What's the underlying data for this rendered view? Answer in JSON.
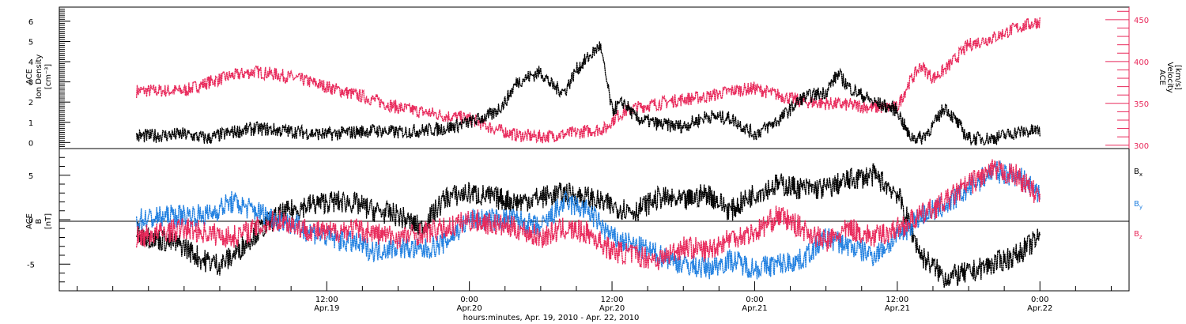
{
  "colors": {
    "black": "#000000",
    "red": "#e8285a",
    "blue": "#1f7fe0",
    "magenta_axis": "#e8285a"
  },
  "x_axis": {
    "title": "hours:minutes, Apr. 19, 2010 - Apr. 22, 2010",
    "ticks": [
      {
        "t": 12,
        "time": "12:00",
        "date": "Apr.19"
      },
      {
        "t": 24,
        "time": "0:00",
        "date": "Apr.20"
      },
      {
        "t": 36,
        "time": "12:00",
        "date": "Apr.20"
      },
      {
        "t": 48,
        "time": "0:00",
        "date": "Apr.21"
      },
      {
        "t": 60,
        "time": "12:00",
        "date": "Apr.21"
      },
      {
        "t": 72,
        "time": "0:00",
        "date": "Apr.22"
      }
    ],
    "t_range": [
      -10.5,
      79.5
    ]
  },
  "top_panel": {
    "left_label_lines": [
      "ACE",
      "Ion Density",
      "[cm⁻³]"
    ],
    "right_label_lines": [
      "ACE",
      "Velocity",
      "[km/s]"
    ]
  },
  "bottom_panel": {
    "left_label_lines": [
      "ACE",
      "B",
      "[nT]"
    ],
    "legend": [
      {
        "key": "bx",
        "base": "B",
        "sub": "x",
        "color": "#000000"
      },
      {
        "key": "by",
        "base": "B",
        "sub": "y",
        "color": "#1f7fe0"
      },
      {
        "key": "bz",
        "base": "B",
        "sub": "z",
        "color": "#e8285a"
      }
    ]
  },
  "chart_data": [
    {
      "type": "scatter",
      "title": "",
      "xlabel": "",
      "ylabel": "ACE Ion Density [cm⁻³]",
      "ylim": [
        -0.3,
        6.7
      ],
      "y_ticks": [
        0,
        1,
        2,
        3,
        4,
        5,
        6
      ],
      "series": [
        {
          "name": "",
          "axis": "left",
          "color": "#000000",
          "x": [
            -4,
            0,
            2,
            4,
            6,
            8,
            10,
            12,
            14,
            16,
            18,
            20,
            22,
            24,
            26,
            27,
            28,
            30,
            31,
            32,
            33,
            34,
            35,
            36,
            37,
            38,
            40,
            42,
            44,
            46,
            48,
            50,
            52,
            54,
            55,
            56,
            58,
            60,
            61,
            62,
            63,
            64,
            66,
            68,
            70,
            72
          ],
          "y": [
            0.3,
            0.4,
            0.2,
            0.5,
            0.7,
            0.6,
            0.5,
            0.4,
            0.5,
            0.6,
            0.5,
            0.6,
            0.7,
            1.0,
            1.4,
            2.0,
            3.0,
            3.5,
            2.8,
            2.5,
            3.6,
            4.2,
            4.8,
            1.6,
            2.0,
            1.2,
            0.9,
            0.8,
            1.3,
            1.2,
            0.4,
            1.1,
            2.2,
            2.5,
            3.4,
            2.7,
            2.0,
            1.6,
            0.3,
            0.2,
            0.8,
            1.8,
            0.2,
            0.2,
            0.5,
            0.6
          ]
        }
      ]
    },
    {
      "type": "scatter",
      "title": "",
      "xlabel": "",
      "ylabel": "ACE Velocity [km/s]",
      "ylim": [
        296,
        465
      ],
      "y_ticks": [
        300,
        350,
        400,
        450
      ],
      "series": [
        {
          "name": "",
          "axis": "right",
          "color": "#e8285a",
          "x": [
            -4,
            0,
            2,
            4,
            6,
            8,
            10,
            12,
            14,
            16,
            18,
            20,
            22,
            24,
            26,
            28,
            30,
            32,
            34,
            35.5,
            36,
            37,
            38,
            40,
            42,
            44,
            46,
            48,
            50,
            52,
            54,
            56,
            58,
            60,
            61,
            62,
            63,
            64,
            66,
            68,
            70,
            72
          ],
          "y": [
            365,
            365,
            375,
            383,
            388,
            384,
            378,
            370,
            362,
            354,
            345,
            340,
            335,
            332,
            320,
            312,
            310,
            313,
            317,
            320,
            330,
            340,
            345,
            350,
            355,
            358,
            365,
            368,
            360,
            352,
            350,
            348,
            345,
            345,
            375,
            395,
            380,
            390,
            420,
            428,
            440,
            448
          ]
        }
      ]
    },
    {
      "type": "scatter",
      "title": "",
      "xlabel": "hours:minutes, Apr. 19, 2010 - Apr. 22, 2010",
      "ylabel": "ACE B [nT]",
      "ylim": [
        -8,
        8
      ],
      "y_ticks": [
        -5,
        0,
        5
      ],
      "series": [
        {
          "name": "Bx",
          "color": "#000000",
          "x": [
            -4,
            0,
            1.5,
            3,
            4,
            6,
            8,
            10,
            12,
            14,
            16,
            18,
            20,
            22,
            24,
            26,
            28,
            30,
            32,
            34,
            36,
            38,
            40,
            42,
            44,
            46,
            48,
            50,
            52,
            54,
            56,
            58,
            60,
            62,
            64,
            66,
            68,
            70,
            72
          ],
          "y": [
            -1.5,
            -3.0,
            -4.5,
            -5.0,
            -4.2,
            -1.5,
            0.5,
            1.5,
            2.0,
            2.0,
            1.0,
            0.5,
            -1.0,
            2.5,
            3.0,
            2.5,
            2.0,
            2.5,
            3.0,
            2.5,
            1.5,
            1.0,
            2.5,
            2.0,
            3.0,
            1.0,
            3.0,
            4.0,
            3.5,
            3.5,
            4.5,
            5.0,
            3.0,
            -4.0,
            -6.5,
            -6.0,
            -5.0,
            -4.0,
            -2.0
          ]
        },
        {
          "name": "By",
          "color": "#1f7fe0",
          "x": [
            -4,
            0,
            2,
            4,
            6,
            8,
            10,
            12,
            14,
            16,
            18,
            20,
            22,
            24,
            26,
            28,
            30,
            32,
            34,
            36,
            38,
            40,
            42,
            44,
            46,
            48,
            50,
            52,
            54,
            56,
            58,
            60,
            62,
            64,
            66,
            68,
            70,
            72
          ],
          "y": [
            0,
            0.5,
            0.5,
            2.0,
            1.0,
            0,
            -1.0,
            -2.0,
            -2.5,
            -3.5,
            -3.0,
            -3.5,
            -2.5,
            0,
            0,
            0,
            -1.0,
            2.0,
            1.0,
            -2.0,
            -3.0,
            -4.0,
            -5.0,
            -5.5,
            -4.5,
            -5.5,
            -5.0,
            -4.5,
            -2.0,
            -3.0,
            -4.0,
            -2.0,
            0.5,
            1.5,
            3.5,
            5.5,
            5.0,
            3.0
          ]
        },
        {
          "name": "Bz",
          "color": "#e8285a",
          "x": [
            -4,
            0,
            2,
            4,
            6,
            8,
            10,
            12,
            14,
            16,
            18,
            20,
            22,
            24,
            26,
            28,
            30,
            32,
            34,
            36,
            38,
            40,
            42,
            44,
            46,
            48,
            50,
            52,
            54,
            56,
            58,
            60,
            62,
            64,
            66,
            68,
            70,
            72
          ],
          "y": [
            -2.0,
            -1.0,
            -1.5,
            -2.0,
            -1.0,
            0,
            -1.0,
            -1.5,
            -1.0,
            -1.5,
            -2.0,
            -1.5,
            -1.0,
            0,
            -0.5,
            -1.0,
            -2.0,
            -1.0,
            -1.5,
            -3.5,
            -4.0,
            -4.5,
            -3.0,
            -3.5,
            -2.0,
            -1.5,
            0.5,
            -1.0,
            -2.5,
            -1.0,
            -2.0,
            -1.0,
            0.5,
            2.0,
            4.0,
            5.5,
            5.0,
            2.5
          ]
        }
      ]
    }
  ]
}
